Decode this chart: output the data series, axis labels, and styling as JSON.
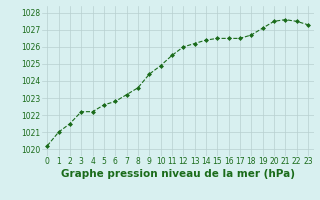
{
  "x": [
    0,
    1,
    2,
    3,
    4,
    5,
    6,
    7,
    8,
    9,
    10,
    11,
    12,
    13,
    14,
    15,
    16,
    17,
    18,
    19,
    20,
    21,
    22,
    23
  ],
  "y": [
    1020.2,
    1021.0,
    1021.5,
    1022.2,
    1022.2,
    1022.6,
    1022.8,
    1023.2,
    1023.6,
    1024.4,
    1024.9,
    1025.5,
    1026.0,
    1026.2,
    1026.4,
    1026.5,
    1026.5,
    1026.5,
    1026.7,
    1027.1,
    1027.5,
    1027.6,
    1027.5,
    1027.3
  ],
  "line_color": "#1a6b1a",
  "marker": "D",
  "marker_size": 2.0,
  "bg_color": "#d8f0f0",
  "grid_color": "#b8d0d0",
  "xlabel": "Graphe pression niveau de la mer (hPa)",
  "xlabel_fontsize": 7.5,
  "xlabel_color": "#1a6b1a",
  "ylim": [
    1019.6,
    1028.4
  ],
  "yticks": [
    1020,
    1021,
    1022,
    1023,
    1024,
    1025,
    1026,
    1027,
    1028
  ],
  "xticks": [
    0,
    1,
    2,
    3,
    4,
    5,
    6,
    7,
    8,
    9,
    10,
    11,
    12,
    13,
    14,
    15,
    16,
    17,
    18,
    19,
    20,
    21,
    22,
    23
  ],
  "tick_fontsize": 5.5,
  "tick_color": "#1a6b1a",
  "linewidth": 0.8
}
